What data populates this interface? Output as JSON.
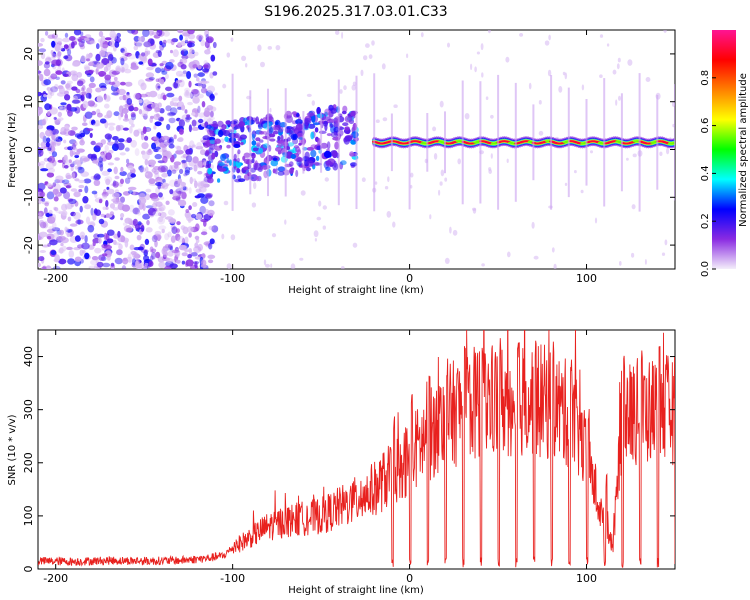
{
  "title": "S196.2025.317.03.01.C33",
  "chart_data": [
    {
      "type": "heatmap",
      "title": "S196.2025.317.03.01.C33",
      "xlabel": "Height of straight line (km)",
      "ylabel": "Frequency (Hz)",
      "xlim": [
        -210,
        150
      ],
      "ylim": [
        -25,
        25
      ],
      "xticks": [
        -200,
        -100,
        0,
        100
      ],
      "yticks": [
        -20,
        -10,
        0,
        10,
        20
      ],
      "colorbar": {
        "label": "Normalized spectral amplitude",
        "range": [
          0,
          1
        ],
        "ticks": [
          0.0,
          0.2,
          0.4,
          0.6,
          0.8
        ],
        "colors": [
          "#f4eefa",
          "#8a2be2",
          "#0000ff",
          "#00ffff",
          "#00ff00",
          "#ffff00",
          "#ff8000",
          "#ff0000",
          "#ff1493"
        ]
      },
      "features": [
        {
          "name": "background noise",
          "x_range": [
            -210,
            -110
          ],
          "freq_range": [
            -25,
            25
          ],
          "amplitude": 0.05
        },
        {
          "name": "transition cluster",
          "x_range": [
            -115,
            -30
          ],
          "freq_range": [
            -5,
            8
          ],
          "amplitude": 0.25
        },
        {
          "name": "narrowband line",
          "x_range": [
            -20,
            150
          ],
          "freq": 1.5,
          "amplitude": 0.9
        }
      ]
    },
    {
      "type": "line",
      "xlabel": "Height of straight line (km)",
      "ylabel": "SNR (10 * v/v)",
      "xlim": [
        -210,
        150
      ],
      "ylim": [
        0,
        450
      ],
      "xticks": [
        -200,
        -100,
        0,
        100
      ],
      "yticks": [
        0,
        100,
        200,
        300,
        400
      ],
      "series": [
        {
          "name": "SNR",
          "color": "#e8211e",
          "x": [
            -210,
            -190,
            -170,
            -150,
            -130,
            -115,
            -105,
            -100,
            -90,
            -80,
            -70,
            -60,
            -50,
            -40,
            -30,
            -20,
            -10,
            0,
            10,
            20,
            30,
            40,
            50,
            60,
            70,
            80,
            90,
            95,
            100,
            105,
            110,
            115,
            120,
            130,
            140,
            150
          ],
          "values": [
            15,
            14,
            16,
            15,
            16,
            20,
            25,
            40,
            60,
            80,
            90,
            95,
            100,
            115,
            130,
            150,
            180,
            210,
            250,
            280,
            305,
            315,
            318,
            320,
            318,
            312,
            290,
            260,
            210,
            150,
            80,
            40,
            290,
            295,
            300,
            300
          ]
        }
      ],
      "periodic_dropouts_from_x": -10,
      "dropout_spacing": 10
    }
  ]
}
